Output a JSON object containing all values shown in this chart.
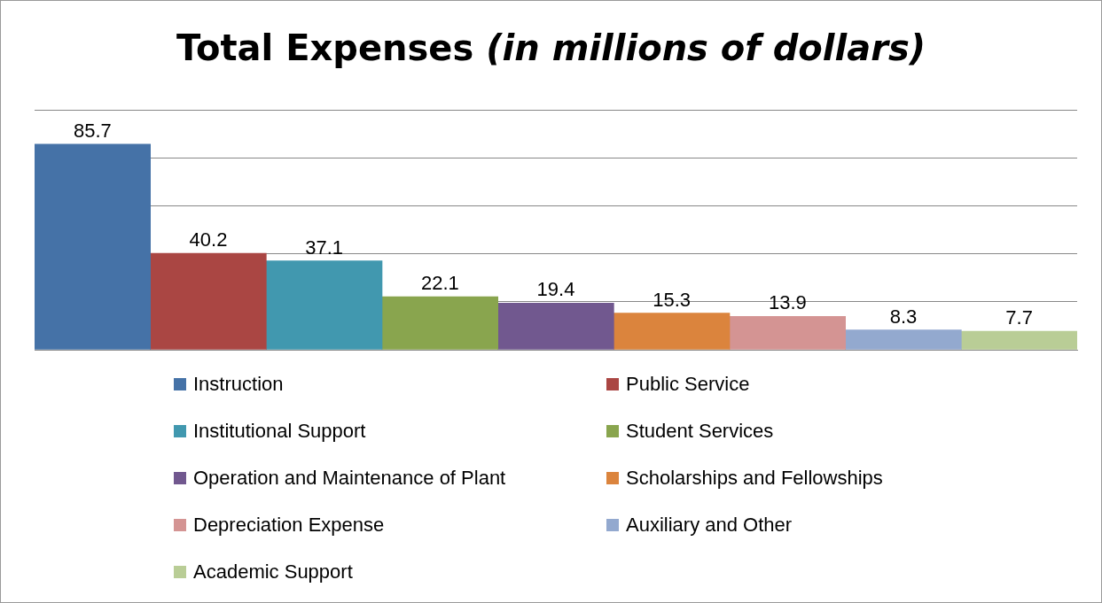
{
  "chart_data": {
    "type": "bar",
    "title": "Total Expenses (in millions of dollars)",
    "categories": [
      null
    ],
    "series": [
      {
        "name": "Instruction",
        "color": "#4572a7",
        "values": [
          85.7
        ]
      },
      {
        "name": "Public Service",
        "color": "#aa4643",
        "values": [
          40.2
        ]
      },
      {
        "name": "Institutional Support",
        "color": "#4198af",
        "values": [
          37.1
        ]
      },
      {
        "name": "Student Services",
        "color": "#89a54e",
        "values": [
          22.1
        ]
      },
      {
        "name": "Operation and Maintenance of Plant",
        "color": "#71588f",
        "values": [
          19.4
        ]
      },
      {
        "name": "Scholarships and Fellowships",
        "color": "#db843d",
        "values": [
          15.3
        ]
      },
      {
        "name": "Depreciation Expense",
        "color": "#d49493",
        "values": [
          13.9
        ]
      },
      {
        "name": "Auxiliary and Other",
        "color": "#93a9cf",
        "values": [
          8.3
        ]
      },
      {
        "name": "Academic Support",
        "color": "#b9cd96",
        "values": [
          7.7
        ]
      }
    ],
    "ylim": [
      0,
      100
    ],
    "yticks": [
      0,
      20,
      40,
      60,
      80,
      100
    ],
    "grid": "y",
    "tick_labels": false,
    "data_labels": true,
    "legend": "bottom"
  }
}
